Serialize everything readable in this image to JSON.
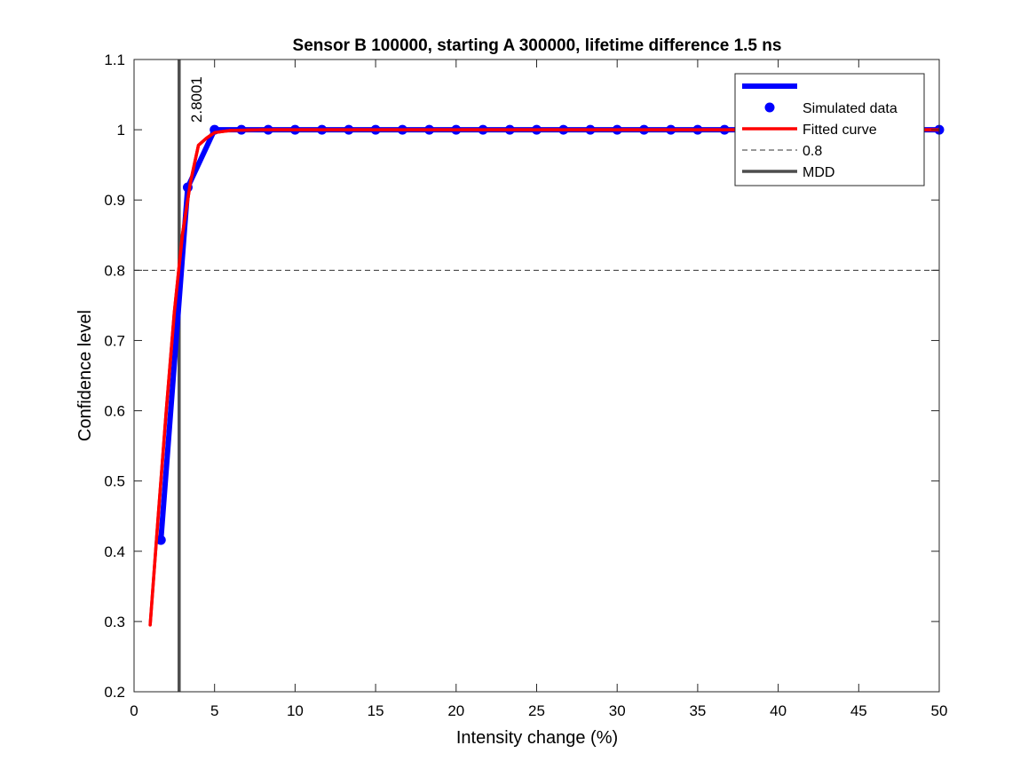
{
  "chart_data": {
    "type": "line",
    "title": "Sensor B 100000, starting A 300000, lifetime difference 1.5 ns",
    "xlabel": "Intensity change (%)",
    "ylabel": "Confidence level",
    "xlim": [
      0,
      50
    ],
    "ylim": [
      0.2,
      1.1
    ],
    "xticks": [
      0,
      5,
      10,
      15,
      20,
      25,
      30,
      35,
      40,
      45,
      50
    ],
    "yticks": [
      0.2,
      0.3,
      0.4,
      0.5,
      0.6,
      0.7,
      0.8,
      0.9,
      1,
      1.1
    ],
    "grid": false,
    "legend_position": "top-right",
    "series": [
      {
        "name": "",
        "kind": "line",
        "color": "#0000ff",
        "x": [
          1.667,
          3.333,
          5,
          6.667,
          8.333,
          10,
          11.667,
          13.333,
          15,
          16.667,
          18.333,
          20,
          21.667,
          23.333,
          25,
          26.667,
          28.333,
          30,
          31.667,
          33.333,
          35,
          36.667,
          38.333,
          40,
          41.667,
          43.333,
          45,
          46.667,
          48.333,
          50
        ],
        "y": [
          0.416,
          0.918,
          1.0,
          1.0,
          1.0,
          1.0,
          1.0,
          1.0,
          1.0,
          1.0,
          1.0,
          1.0,
          1.0,
          1.0,
          1.0,
          1.0,
          1.0,
          1.0,
          1.0,
          1.0,
          1.0,
          1.0,
          1.0,
          1.0,
          1.0,
          1.0,
          1.0,
          1.0,
          1.0,
          1.0
        ]
      },
      {
        "name": "Simulated data",
        "kind": "markers",
        "color": "#0000ff",
        "x": [
          1.667,
          3.333,
          5,
          6.667,
          8.333,
          10,
          11.667,
          13.333,
          15,
          16.667,
          18.333,
          20,
          21.667,
          23.333,
          25,
          26.667,
          28.333,
          30,
          31.667,
          33.333,
          35,
          36.667,
          38.333,
          40,
          41.667,
          43.333,
          45,
          46.667,
          48.333,
          50
        ],
        "y": [
          0.416,
          0.918,
          1.0,
          1.0,
          1.0,
          1.0,
          1.0,
          1.0,
          1.0,
          1.0,
          1.0,
          1.0,
          1.0,
          1.0,
          1.0,
          1.0,
          1.0,
          1.0,
          1.0,
          1.0,
          1.0,
          1.0,
          1.0,
          1.0,
          1.0,
          1.0,
          1.0,
          1.0,
          1.0,
          1.0
        ]
      },
      {
        "name": "Fitted curve",
        "kind": "line",
        "color": "#ff0000",
        "x": [
          1,
          1.5,
          2,
          2.5,
          3,
          3.5,
          4,
          4.5,
          5,
          6,
          8,
          10,
          15,
          20,
          25,
          30,
          35,
          40,
          45,
          50
        ],
        "y": [
          0.295,
          0.45,
          0.6,
          0.74,
          0.85,
          0.925,
          0.978,
          0.988,
          0.996,
          0.999,
          1.0,
          1.0,
          1.0,
          1.0,
          1.0,
          1.0,
          1.0,
          1.0,
          1.0,
          1.0
        ]
      },
      {
        "name": "0.8",
        "kind": "hline",
        "color": "#333333",
        "style": "dashed",
        "y": 0.8
      },
      {
        "name": "MDD",
        "kind": "vline",
        "color": "#4d4d4d",
        "x": 2.8001
      }
    ],
    "annotations": [
      {
        "text": "2.8001",
        "x": 2.8001,
        "y": 1.0,
        "rotation": -90
      }
    ]
  }
}
